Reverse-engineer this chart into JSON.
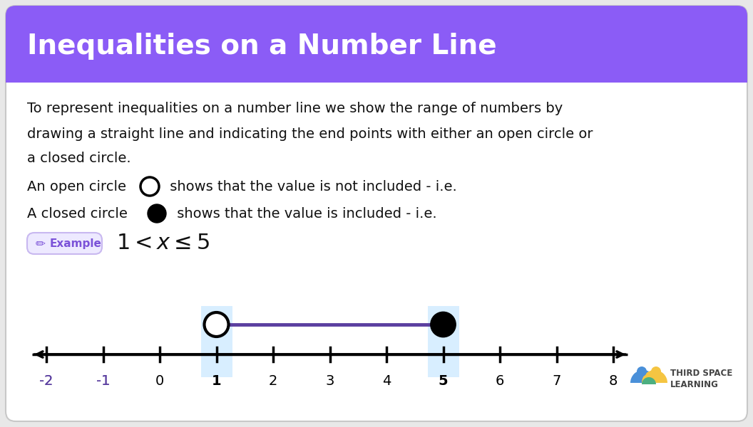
{
  "title": "Inequalities on a Number Line",
  "title_bg_color": "#8B5CF6",
  "title_text_color": "#FFFFFF",
  "body_bg_color": "#FFFFFF",
  "border_color": "#CCCCCC",
  "body_text_color": "#111111",
  "purple_color": "#5B3FA0",
  "line1": "To represent inequalities on a number line we show the range of numbers by",
  "line2": "drawing a straight line and indicating the end points with either an open circle or",
  "line3": "a closed circle.",
  "open_circle_text": "An open circle",
  "open_circle_suffix": " shows that the value is not included - i.e.",
  "closed_circle_text": "A closed circle",
  "closed_circle_suffix": " shows that the value is included - i.e.",
  "example_label": "Example",
  "example_label_color": "#7B52D8",
  "example_label_bg": "#EDE9FF",
  "number_line_min": -2,
  "number_line_max": 8,
  "open_point": 1,
  "closed_point": 5,
  "logo_text1": "THIRD SPACE",
  "logo_text2": "LEARNING"
}
